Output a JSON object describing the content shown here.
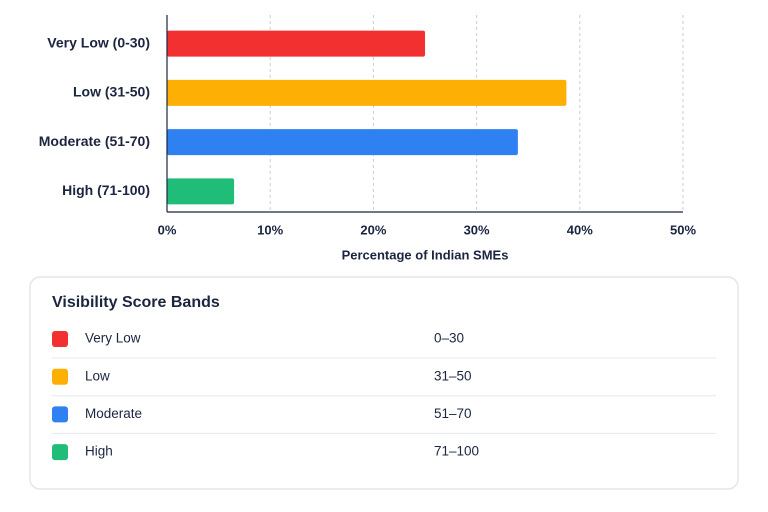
{
  "chart_data": {
    "type": "bar",
    "orientation": "horizontal",
    "categories": [
      "Very Low (0-30)",
      "Low (31-50)",
      "Moderate (51-70)",
      "High (71-100)"
    ],
    "values": [
      25,
      38.7,
      34,
      6.5
    ],
    "colors": [
      "#f23030",
      "#fdb003",
      "#2f80f0",
      "#1fbd78"
    ],
    "xlim": [
      0,
      50
    ],
    "xticks": [
      {
        "value": 0,
        "label": "0%"
      },
      {
        "value": 10,
        "label": "10%"
      },
      {
        "value": 20,
        "label": "20%"
      },
      {
        "value": 30,
        "label": "30%"
      },
      {
        "value": 40,
        "label": "40%"
      },
      {
        "value": 50,
        "label": "50%"
      }
    ],
    "x_label": "Percentage of Indian SMEs",
    "grid": true
  },
  "legend_table": {
    "title": "Visibility Score Bands",
    "rows": [
      {
        "label": "Very Low",
        "range": "0–30",
        "color": "#f23030"
      },
      {
        "label": "Low",
        "range": "31–50",
        "color": "#fdb003"
      },
      {
        "label": "Moderate",
        "range": "51–70",
        "color": "#2f80f0"
      },
      {
        "label": "High",
        "range": "71–100",
        "color": "#1fbd78"
      }
    ]
  }
}
